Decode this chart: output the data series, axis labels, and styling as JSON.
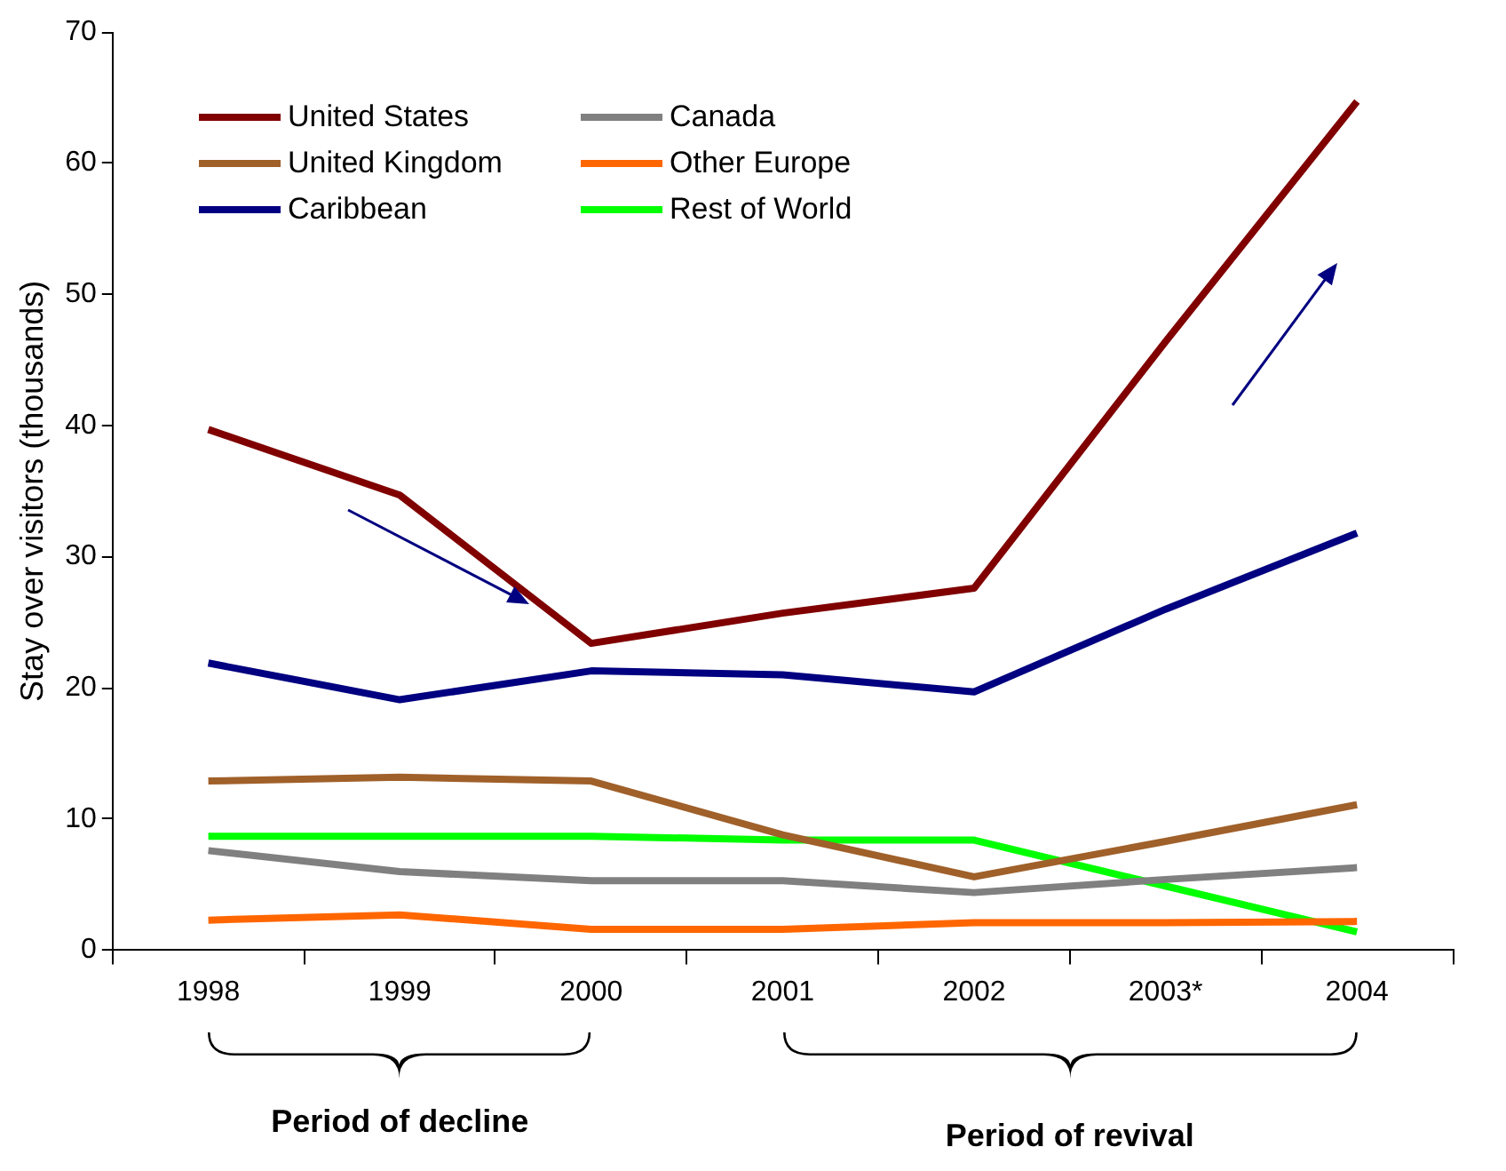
{
  "chart_data": {
    "type": "line",
    "ylabel": "Stay over visitors (thousands)",
    "categories": [
      "1998",
      "1999",
      "2000",
      "2001",
      "2002",
      "2003*",
      "2004"
    ],
    "series": [
      {
        "name": "United States",
        "color": "#800000",
        "values": [
          39.7,
          34.7,
          23.4,
          25.7,
          27.6,
          46.4,
          64.7
        ]
      },
      {
        "name": "Canada",
        "color": "#808080",
        "values": [
          7.6,
          6.0,
          5.3,
          5.3,
          4.4,
          5.4,
          6.3
        ]
      },
      {
        "name": "United Kingdom",
        "color": "#a0602a",
        "values": [
          12.9,
          13.2,
          12.9,
          8.8,
          5.6,
          8.3,
          11.1
        ]
      },
      {
        "name": "Other Europe",
        "color": "#ff6600",
        "values": [
          2.3,
          2.7,
          1.6,
          1.6,
          2.1,
          2.1,
          2.2
        ]
      },
      {
        "name": "Caribbean",
        "color": "#000080",
        "values": [
          21.9,
          19.1,
          21.3,
          21.0,
          19.7,
          26.0,
          31.8
        ]
      },
      {
        "name": "Rest of World",
        "color": "#00ff00",
        "values": [
          8.7,
          8.7,
          8.7,
          8.4,
          8.4,
          4.9,
          1.4
        ]
      }
    ],
    "ylim": [
      0,
      70
    ],
    "yticks": [
      0,
      10,
      20,
      30,
      40,
      50,
      60,
      70
    ],
    "grid": false,
    "legend": "top left",
    "marker": "none",
    "line_style": "solid",
    "annotations": [
      "Period of decline",
      "Period of revival"
    ]
  }
}
